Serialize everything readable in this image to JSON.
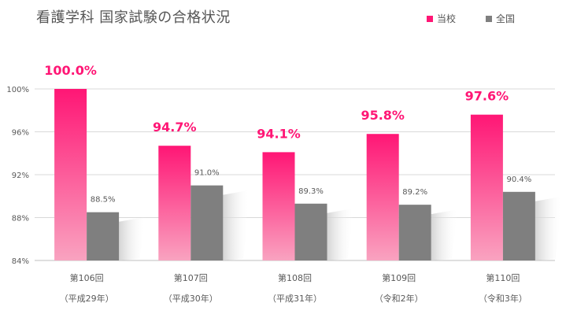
{
  "colors": {
    "school": "#ff1675",
    "school_light": "#f9a3c0",
    "national": "#7f7f7f",
    "grid": "#d9d9d9",
    "axis": "#bfbfbf",
    "text": "#595959"
  },
  "chart_data": {
    "type": "bar",
    "title": "看護学科 国家試験の合格状況",
    "categories": [
      "第106回",
      "第107回",
      "第108回",
      "第109回",
      "第110回"
    ],
    "category_sublabels": [
      "（平成29年）",
      "（平成30年）",
      "（平成31年）",
      "（令和2年）",
      "（令和3年）"
    ],
    "series": [
      {
        "name": "当校",
        "values": [
          100.0,
          94.7,
          94.1,
          95.8,
          97.6
        ],
        "labels": [
          "100.0%",
          "94.7%",
          "94.1%",
          "95.8%",
          "97.6%"
        ]
      },
      {
        "name": "全国",
        "values": [
          88.5,
          91.0,
          89.3,
          89.2,
          90.4
        ],
        "labels": [
          "88.5%",
          "91.0%",
          "89.3%",
          "89.2%",
          "90.4%"
        ]
      }
    ],
    "ylim": [
      84,
      100
    ],
    "yticks": [
      84,
      88,
      92,
      96,
      100
    ],
    "ytick_labels": [
      "84%",
      "88%",
      "92%",
      "96%",
      "100%"
    ],
    "grid": true,
    "legend_position": "top-right"
  }
}
